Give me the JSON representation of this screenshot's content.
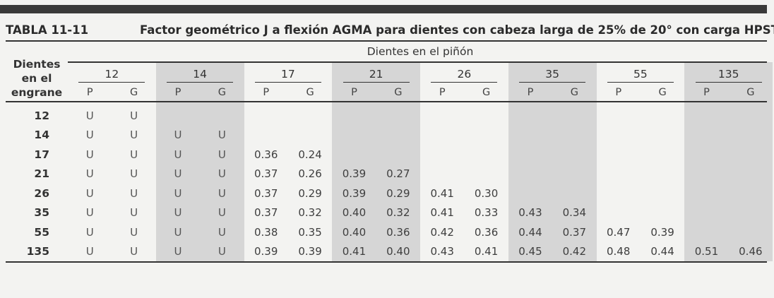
{
  "table": {
    "number": "TABLA 11-11",
    "title": "Factor geométrico J a flexión AGMA para dientes con cabeza larga de 25% de 20° con carga HPSTC",
    "row_header": "Dientes en el engrane",
    "col_super_header": "Dientes en el piñón",
    "pinion_counts": [
      "12",
      "14",
      "17",
      "21",
      "26",
      "35",
      "55",
      "135"
    ],
    "sub_headers": [
      "P",
      "G"
    ],
    "gear_counts": [
      "12",
      "14",
      "17",
      "21",
      "26",
      "35",
      "55",
      "135"
    ],
    "rows": [
      [
        [
          "U",
          "U"
        ],
        [
          "",
          ""
        ],
        [
          "",
          ""
        ],
        [
          "",
          ""
        ],
        [
          "",
          ""
        ],
        [
          "",
          ""
        ],
        [
          "",
          ""
        ],
        [
          "",
          ""
        ]
      ],
      [
        [
          "U",
          "U"
        ],
        [
          "U",
          "U"
        ],
        [
          "",
          ""
        ],
        [
          "",
          ""
        ],
        [
          "",
          ""
        ],
        [
          "",
          ""
        ],
        [
          "",
          ""
        ],
        [
          "",
          ""
        ]
      ],
      [
        [
          "U",
          "U"
        ],
        [
          "U",
          "U"
        ],
        [
          "0.36",
          "0.24"
        ],
        [
          "",
          ""
        ],
        [
          "",
          ""
        ],
        [
          "",
          ""
        ],
        [
          "",
          ""
        ],
        [
          "",
          ""
        ]
      ],
      [
        [
          "U",
          "U"
        ],
        [
          "U",
          "U"
        ],
        [
          "0.37",
          "0.26"
        ],
        [
          "0.39",
          "0.27"
        ],
        [
          "",
          ""
        ],
        [
          "",
          ""
        ],
        [
          "",
          ""
        ],
        [
          "",
          ""
        ]
      ],
      [
        [
          "U",
          "U"
        ],
        [
          "U",
          "U"
        ],
        [
          "0.37",
          "0.29"
        ],
        [
          "0.39",
          "0.29"
        ],
        [
          "0.41",
          "0.30"
        ],
        [
          "",
          ""
        ],
        [
          "",
          ""
        ],
        [
          "",
          ""
        ]
      ],
      [
        [
          "U",
          "U"
        ],
        [
          "U",
          "U"
        ],
        [
          "0.37",
          "0.32"
        ],
        [
          "0.40",
          "0.32"
        ],
        [
          "0.41",
          "0.33"
        ],
        [
          "0.43",
          "0.34"
        ],
        [
          "",
          ""
        ],
        [
          "",
          ""
        ]
      ],
      [
        [
          "U",
          "U"
        ],
        [
          "U",
          "U"
        ],
        [
          "0.38",
          "0.35"
        ],
        [
          "0.40",
          "0.36"
        ],
        [
          "0.42",
          "0.36"
        ],
        [
          "0.44",
          "0.37"
        ],
        [
          "0.47",
          "0.39"
        ],
        [
          "",
          ""
        ]
      ],
      [
        [
          "U",
          "U"
        ],
        [
          "U",
          "U"
        ],
        [
          "0.39",
          "0.39"
        ],
        [
          "0.41",
          "0.40"
        ],
        [
          "0.43",
          "0.41"
        ],
        [
          "0.45",
          "0.42"
        ],
        [
          "0.48",
          "0.44"
        ],
        [
          "0.51",
          "0.46"
        ]
      ]
    ],
    "shaded_groups": [
      1,
      3,
      5,
      7
    ]
  }
}
